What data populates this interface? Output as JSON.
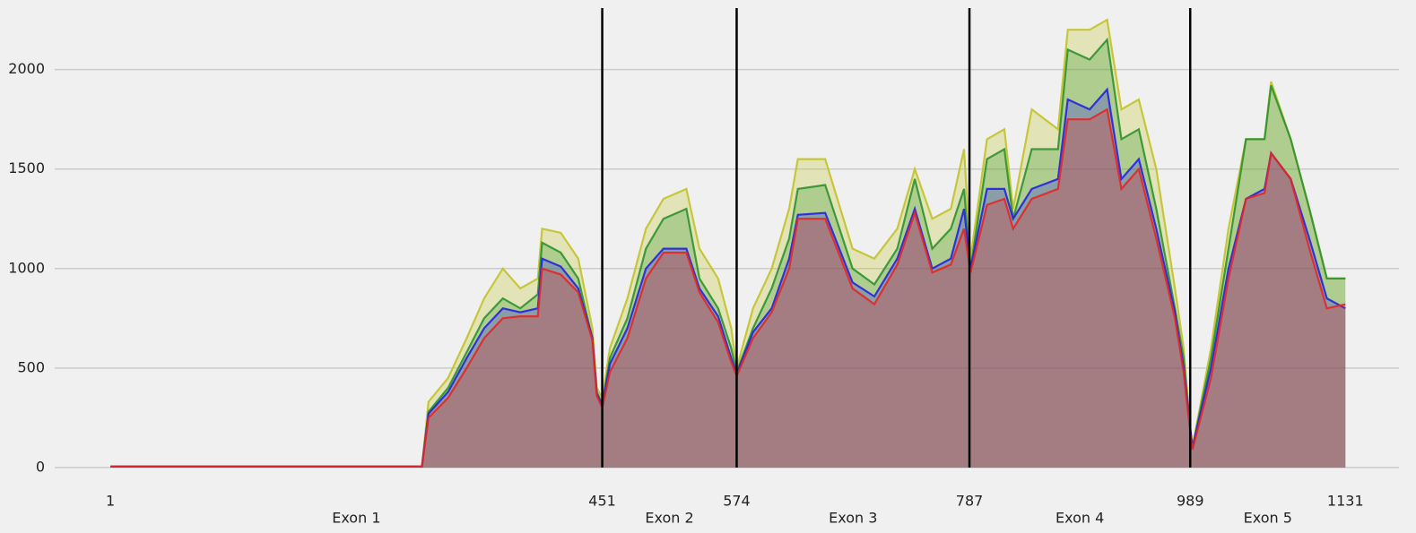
{
  "chart_data": {
    "type": "area",
    "x": [
      1,
      286,
      292,
      310,
      327,
      343,
      360,
      376,
      392,
      396,
      413,
      429,
      442,
      446,
      451,
      458,
      474,
      491,
      507,
      528,
      540,
      557,
      569,
      574,
      589,
      606,
      622,
      630,
      655,
      680,
      700,
      721,
      737,
      753,
      770,
      782,
      788,
      803,
      819,
      827,
      844,
      868,
      877,
      897,
      913,
      926,
      942,
      958,
      975,
      983,
      989,
      991,
      1008,
      1024,
      1040,
      1057,
      1063,
      1081,
      1098,
      1114,
      1131
    ],
    "series": [
      {
        "color": "#c2c229",
        "values": [
          5,
          5,
          330,
          450,
          650,
          850,
          1000,
          900,
          950,
          1200,
          1180,
          1050,
          700,
          400,
          350,
          600,
          850,
          1200,
          1350,
          1400,
          1100,
          950,
          700,
          500,
          800,
          1000,
          1300,
          1550,
          1550,
          1100,
          1050,
          1200,
          1500,
          1250,
          1300,
          1600,
          1050,
          1650,
          1700,
          1300,
          1800,
          1700,
          2200,
          2200,
          2250,
          1800,
          1850,
          1500,
          900,
          600,
          200,
          100,
          600,
          1200,
          1650,
          1650,
          1940,
          1650,
          1300,
          950,
          950
        ]
      },
      {
        "color": "#2c922c",
        "values": [
          5,
          5,
          280,
          400,
          580,
          750,
          850,
          800,
          870,
          1130,
          1080,
          950,
          650,
          380,
          320,
          550,
          750,
          1100,
          1250,
          1300,
          950,
          800,
          600,
          480,
          700,
          900,
          1150,
          1400,
          1420,
          1000,
          920,
          1100,
          1450,
          1100,
          1200,
          1400,
          1000,
          1550,
          1600,
          1250,
          1600,
          1600,
          2100,
          2050,
          2150,
          1650,
          1700,
          1300,
          800,
          550,
          200,
          100,
          550,
          1100,
          1650,
          1650,
          1920,
          1650,
          1300,
          950,
          950
        ]
      },
      {
        "color": "#2424e0",
        "values": [
          5,
          5,
          270,
          380,
          550,
          700,
          800,
          780,
          800,
          1050,
          1010,
          900,
          650,
          370,
          310,
          520,
          700,
          1000,
          1100,
          1100,
          900,
          760,
          550,
          470,
          680,
          800,
          1050,
          1270,
          1280,
          930,
          860,
          1050,
          1300,
          1000,
          1050,
          1300,
          1000,
          1400,
          1400,
          1250,
          1400,
          1450,
          1850,
          1800,
          1900,
          1450,
          1550,
          1200,
          780,
          500,
          200,
          100,
          500,
          1000,
          1350,
          1400,
          1580,
          1450,
          1150,
          850,
          800
        ]
      },
      {
        "color": "#e62626",
        "values": [
          5,
          5,
          250,
          350,
          500,
          650,
          750,
          760,
          760,
          1000,
          970,
          880,
          640,
          360,
          300,
          480,
          650,
          950,
          1080,
          1080,
          880,
          730,
          530,
          460,
          650,
          780,
          1000,
          1250,
          1250,
          900,
          820,
          1020,
          1280,
          980,
          1020,
          1200,
          980,
          1320,
          1350,
          1200,
          1350,
          1400,
          1750,
          1750,
          1800,
          1400,
          1500,
          1150,
          750,
          480,
          180,
          90,
          450,
          950,
          1350,
          1380,
          1580,
          1450,
          1100,
          800,
          820
        ]
      }
    ],
    "boundaries": [
      451,
      574,
      787,
      989
    ],
    "regions": [
      {
        "label": "Exon 1",
        "start": 1,
        "end": 451
      },
      {
        "label": "Exon 2",
        "start": 451,
        "end": 574
      },
      {
        "label": "Exon 3",
        "start": 574,
        "end": 787
      },
      {
        "label": "Exon 4",
        "start": 787,
        "end": 989
      },
      {
        "label": "Exon 5",
        "start": 989,
        "end": 1131
      }
    ],
    "xlim": [
      -50,
      1180
    ],
    "xticks": [
      1,
      451,
      574,
      787,
      989,
      1131
    ],
    "ylim": [
      -50,
      2300
    ],
    "yticks": [
      0,
      500,
      1000,
      1500,
      2000
    ],
    "grid": true
  }
}
